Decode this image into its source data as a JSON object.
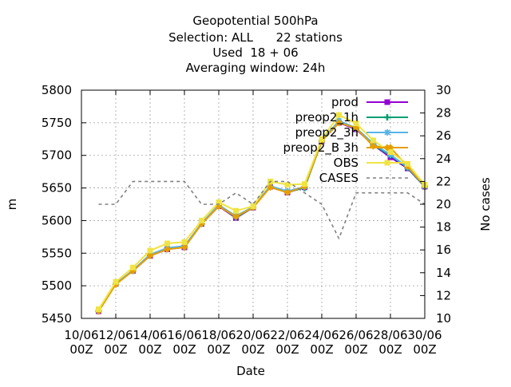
{
  "chart_data": {
    "type": "line",
    "title_lines": [
      "Geopotential 500hPa",
      "Selection: ALL      22 stations",
      "Used  18 + 06",
      "Averaging window: 24h"
    ],
    "xlabel": "Date",
    "ylabel": "m",
    "y2label": "No cases",
    "ylim": [
      5450,
      5800
    ],
    "y2lim": [
      10,
      30
    ],
    "grid": true,
    "legend_position": "top-right",
    "x_tick_labels": [
      {
        "line1": "10/06",
        "line2": "00Z"
      },
      {
        "line1": "12/06",
        "line2": "00Z"
      },
      {
        "line1": "14/06",
        "line2": "00Z"
      },
      {
        "line1": "16/06",
        "line2": "00Z"
      },
      {
        "line1": "18/06",
        "line2": "00Z"
      },
      {
        "line1": "20/06",
        "line2": "00Z"
      },
      {
        "line1": "22/06",
        "line2": "00Z"
      },
      {
        "line1": "24/06",
        "line2": "00Z"
      },
      {
        "line1": "26/06",
        "line2": "00Z"
      },
      {
        "line1": "28/06",
        "line2": "00Z"
      },
      {
        "line1": "30/06",
        "line2": "00Z"
      }
    ],
    "x_day_range": [
      10,
      30
    ],
    "y_ticks": [
      5450,
      5500,
      5550,
      5600,
      5650,
      5700,
      5750,
      5800
    ],
    "y2_ticks": [
      10,
      12,
      14,
      16,
      18,
      20,
      22,
      24,
      26,
      28,
      30
    ],
    "x_days": [
      11,
      12,
      13,
      14,
      15,
      16,
      17,
      18,
      19,
      20,
      21,
      22,
      23,
      24,
      25,
      26,
      27,
      28,
      29,
      30
    ],
    "series": [
      {
        "name": "prod",
        "color": "#9400d3",
        "marker": "square",
        "axis": "y",
        "values": [
          5461,
          5503,
          5523,
          5546,
          5556,
          5559,
          5595,
          5622,
          5604,
          5620,
          5652,
          5643,
          5651,
          5722,
          5750,
          5740,
          5716,
          5697,
          5680,
          5652
        ]
      },
      {
        "name": "preop2_1h",
        "color": "#009e73",
        "marker": "plus",
        "axis": "y",
        "values": [
          5461,
          5503,
          5523,
          5547,
          5557,
          5559,
          5595,
          5623,
          5605,
          5620,
          5652,
          5644,
          5650,
          5722,
          5752,
          5741,
          5716,
          5700,
          5681,
          5652
        ]
      },
      {
        "name": "preop2_3h",
        "color": "#56b4e9",
        "marker": "star",
        "axis": "y",
        "values": [
          5462,
          5503,
          5524,
          5548,
          5558,
          5561,
          5596,
          5624,
          5607,
          5621,
          5653,
          5645,
          5652,
          5723,
          5753,
          5742,
          5718,
          5701,
          5682,
          5653
        ]
      },
      {
        "name": "preop2_B 3h",
        "color": "#e69f00",
        "marker": "diamond",
        "axis": "y",
        "values": [
          5461,
          5502,
          5523,
          5546,
          5556,
          5559,
          5595,
          5622,
          5606,
          5620,
          5651,
          5643,
          5652,
          5722,
          5750,
          5742,
          5714,
          5712,
          5683,
          5653
        ]
      },
      {
        "name": "OBS",
        "color": "#f0e442",
        "marker": "square",
        "axis": "y",
        "values": [
          5464,
          5506,
          5528,
          5554,
          5565,
          5567,
          5600,
          5628,
          5615,
          5622,
          5660,
          5655,
          5656,
          5725,
          5762,
          5749,
          5723,
          5705,
          5687,
          5655
        ]
      },
      {
        "name": "CASES",
        "color": "#808080",
        "marker": "none",
        "dashed": true,
        "axis": "y2",
        "values": [
          20,
          20,
          22,
          22,
          22,
          22,
          20,
          20,
          21,
          20,
          22,
          22,
          21,
          20,
          17,
          21,
          21,
          21,
          21,
          20
        ]
      }
    ]
  }
}
